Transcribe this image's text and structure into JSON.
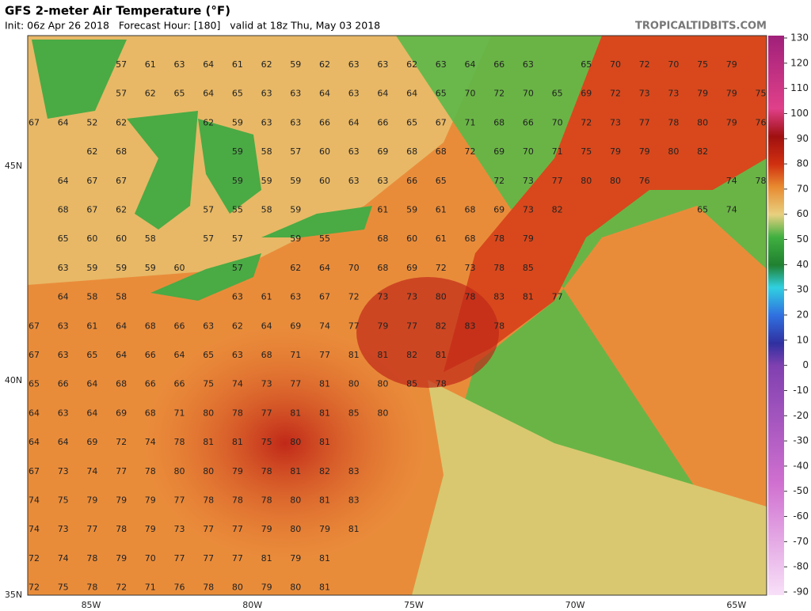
{
  "header": {
    "title": "GFS 2-meter Air Temperature (°F)",
    "subtitle": "Init: 06z Apr 26 2018   Forecast Hour: [180]   valid at 18z Thu, May 03 2018",
    "site": "TROPICALTIDBITS.COM"
  },
  "map": {
    "lon_labels": [
      "85W",
      "80W",
      "75W",
      "70W",
      "65W"
    ],
    "lat_labels": [
      "45N",
      "40N",
      "35N"
    ],
    "values": [
      [
        null,
        null,
        null,
        57,
        61,
        63,
        64,
        61,
        62,
        59,
        62,
        63,
        63,
        62,
        63,
        64,
        66,
        63,
        null,
        65,
        70,
        72,
        70,
        75,
        79,
        null
      ],
      [
        null,
        null,
        null,
        57,
        62,
        65,
        64,
        65,
        63,
        63,
        64,
        63,
        64,
        64,
        65,
        70,
        72,
        70,
        65,
        69,
        72,
        73,
        73,
        79,
        79,
        75
      ],
      [
        67,
        64,
        52,
        62,
        null,
        null,
        62,
        59,
        63,
        63,
        66,
        64,
        66,
        65,
        67,
        71,
        68,
        66,
        70,
        72,
        73,
        77,
        78,
        80,
        79,
        76
      ],
      [
        null,
        null,
        62,
        68,
        null,
        null,
        null,
        59,
        58,
        57,
        60,
        63,
        69,
        68,
        68,
        72,
        69,
        70,
        71,
        75,
        79,
        79,
        80,
        82,
        null,
        null
      ],
      [
        null,
        64,
        67,
        67,
        null,
        null,
        null,
        59,
        59,
        59,
        60,
        63,
        63,
        66,
        65,
        null,
        72,
        73,
        77,
        80,
        80,
        76,
        null,
        null,
        74,
        78
      ],
      [
        null,
        68,
        67,
        62,
        null,
        null,
        57,
        55,
        58,
        59,
        null,
        null,
        61,
        59,
        61,
        68,
        69,
        73,
        82,
        null,
        null,
        null,
        null,
        65,
        74,
        null
      ],
      [
        null,
        65,
        60,
        60,
        58,
        null,
        57,
        57,
        null,
        59,
        55,
        null,
        68,
        60,
        61,
        68,
        78,
        79,
        null,
        null,
        null,
        null,
        null,
        null,
        null,
        null
      ],
      [
        null,
        63,
        59,
        59,
        59,
        60,
        null,
        57,
        null,
        62,
        64,
        70,
        68,
        69,
        72,
        73,
        78,
        85,
        null,
        null,
        null,
        null,
        null,
        null,
        null,
        null
      ],
      [
        null,
        64,
        58,
        58,
        null,
        null,
        null,
        63,
        61,
        63,
        67,
        72,
        73,
        73,
        80,
        78,
        83,
        81,
        77,
        null,
        null,
        null,
        null,
        null,
        null,
        null
      ],
      [
        67,
        63,
        61,
        64,
        68,
        66,
        63,
        62,
        64,
        69,
        74,
        77,
        79,
        77,
        82,
        83,
        78,
        null,
        null,
        null,
        null,
        null,
        null,
        null,
        null,
        null
      ],
      [
        67,
        63,
        65,
        64,
        66,
        64,
        65,
        63,
        68,
        71,
        77,
        81,
        81,
        82,
        81,
        null,
        null,
        null,
        null,
        null,
        null,
        null,
        null,
        null,
        null,
        null
      ],
      [
        65,
        66,
        64,
        68,
        66,
        66,
        75,
        74,
        73,
        77,
        81,
        80,
        80,
        85,
        78,
        null,
        null,
        null,
        null,
        null,
        null,
        null,
        null,
        null,
        null,
        null
      ],
      [
        64,
        63,
        64,
        69,
        68,
        71,
        80,
        78,
        77,
        81,
        81,
        85,
        80,
        null,
        null,
        null,
        null,
        null,
        null,
        null,
        null,
        null,
        null,
        null,
        null,
        null
      ],
      [
        64,
        64,
        69,
        72,
        74,
        78,
        81,
        81,
        75,
        80,
        81,
        null,
        null,
        null,
        null,
        null,
        null,
        null,
        null,
        null,
        null,
        null,
        null,
        null,
        null,
        null
      ],
      [
        67,
        73,
        74,
        77,
        78,
        80,
        80,
        79,
        78,
        81,
        82,
        83,
        null,
        null,
        null,
        null,
        null,
        null,
        null,
        null,
        null,
        null,
        null,
        null,
        null,
        null
      ],
      [
        74,
        75,
        79,
        79,
        79,
        77,
        78,
        78,
        78,
        80,
        81,
        83,
        null,
        null,
        null,
        null,
        null,
        null,
        null,
        null,
        null,
        null,
        null,
        null,
        null,
        null
      ],
      [
        74,
        73,
        77,
        78,
        79,
        73,
        77,
        77,
        79,
        80,
        79,
        81,
        null,
        null,
        null,
        null,
        null,
        null,
        null,
        null,
        null,
        null,
        null,
        null,
        null,
        null
      ],
      [
        72,
        74,
        78,
        79,
        70,
        77,
        77,
        77,
        81,
        79,
        81,
        null,
        null,
        null,
        null,
        null,
        null,
        null,
        null,
        null,
        null,
        null,
        null,
        null,
        null,
        null
      ],
      [
        72,
        75,
        78,
        72,
        71,
        76,
        78,
        80,
        79,
        80,
        81,
        null,
        null,
        null,
        null,
        null,
        null,
        null,
        null,
        null,
        null,
        null,
        null,
        null,
        null,
        null
      ]
    ]
  },
  "colorbar": {
    "ticks": [
      130,
      120,
      110,
      100,
      90,
      80,
      70,
      60,
      50,
      40,
      30,
      20,
      10,
      0,
      -10,
      -20,
      -30,
      -40,
      -50,
      -60,
      -70,
      -80,
      -90
    ]
  }
}
